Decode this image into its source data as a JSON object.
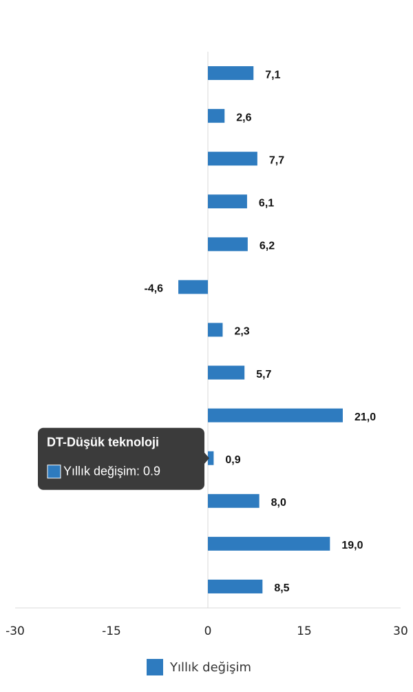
{
  "chart_data": {
    "type": "bar",
    "orientation": "horizontal",
    "categories": [
      null,
      null,
      null,
      null,
      null,
      null,
      null,
      null,
      null,
      "DT-Düşük teknoloji",
      null,
      null,
      null
    ],
    "series": [
      {
        "name": "Yıllık değişim",
        "color": "#2e7bbf",
        "values": [
          7.1,
          2.6,
          7.7,
          6.1,
          6.2,
          -4.6,
          2.3,
          5.7,
          21.0,
          0.9,
          8.0,
          19.0,
          8.5
        ],
        "value_labels": [
          "7,1",
          "2,6",
          "7,7",
          "6,1",
          "6,2",
          "-4,6",
          "2,3",
          "5,7",
          "21,0",
          "0,9",
          "8,0",
          "19,0",
          "8,5"
        ]
      }
    ],
    "xlim": [
      -30,
      30
    ],
    "xticks": [
      -30,
      -15,
      0,
      15,
      30
    ],
    "tooltip": {
      "title": "DT-Düşük teknoloji",
      "text": "Yıllık değişim: 0.9"
    },
    "legend": "bottom"
  }
}
